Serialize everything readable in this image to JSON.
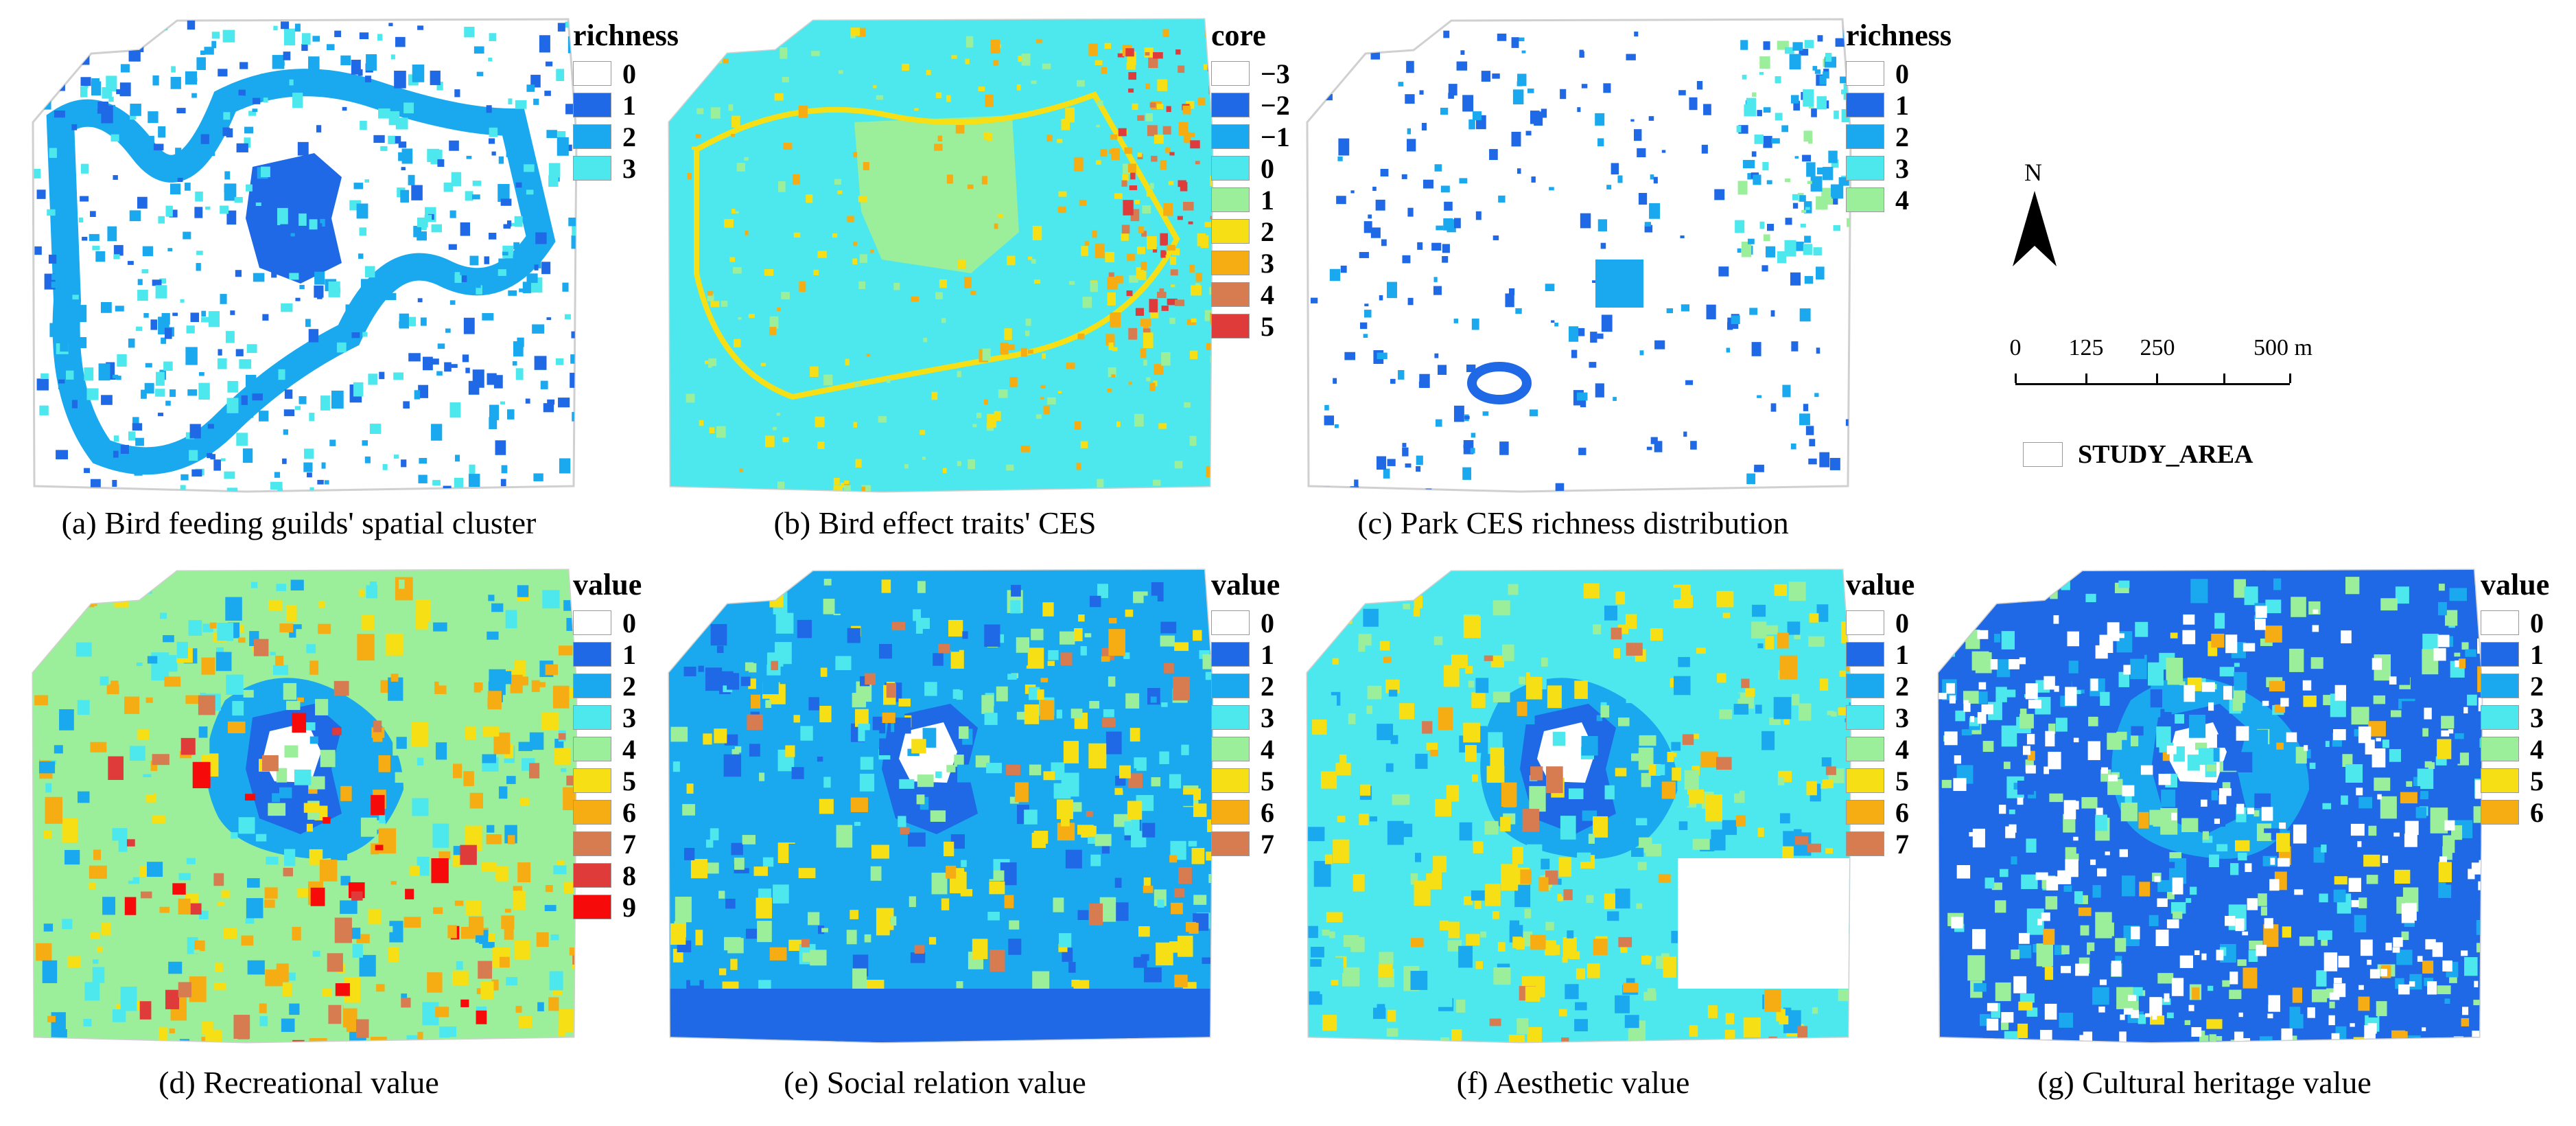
{
  "colors": {
    "boundary": "#d0d0d0",
    "blank": "#ffffff",
    "class1": "#1f68e6",
    "class2": "#1aa9ee",
    "class3": "#4de8ee",
    "class4": "#9bee9a",
    "class5": "#f7df16",
    "class6": "#f5ad13",
    "class7": "#d77b50",
    "class8": "#df3b3b",
    "class9": "#f70a0a"
  },
  "panels": [
    {
      "id": "a",
      "caption": "(a) Bird feeding guilds' spatial cluster",
      "legend": {
        "title": "richness",
        "items": [
          {
            "label": "0",
            "color": "#ffffff"
          },
          {
            "label": "1",
            "color": "#1f68e6"
          },
          {
            "label": "2",
            "color": "#1aa9ee"
          },
          {
            "label": "3",
            "color": "#4de8ee"
          }
        ]
      }
    },
    {
      "id": "b",
      "caption": "(b) Bird effect traits' CES",
      "legend": {
        "title": "core",
        "items": [
          {
            "label": "−3",
            "color": "#ffffff"
          },
          {
            "label": "−2",
            "color": "#1f68e6"
          },
          {
            "label": "−1",
            "color": "#1aa9ee"
          },
          {
            "label": "0",
            "color": "#4de8ee"
          },
          {
            "label": "1",
            "color": "#9bee9a"
          },
          {
            "label": "2",
            "color": "#f7df16"
          },
          {
            "label": "3",
            "color": "#f5ad13"
          },
          {
            "label": "4",
            "color": "#d77b50"
          },
          {
            "label": "5",
            "color": "#df3b3b"
          }
        ]
      }
    },
    {
      "id": "c",
      "caption": "(c) Park CES richness distribution",
      "legend": {
        "title": "richness",
        "items": [
          {
            "label": "0",
            "color": "#ffffff"
          },
          {
            "label": "1",
            "color": "#1f68e6"
          },
          {
            "label": "2",
            "color": "#1aa9ee"
          },
          {
            "label": "3",
            "color": "#4de8ee"
          },
          {
            "label": "4",
            "color": "#9bee9a"
          }
        ]
      }
    },
    {
      "id": "d",
      "caption": "(d) Recreational value",
      "legend": {
        "title": "value",
        "items": [
          {
            "label": "0",
            "color": "#ffffff"
          },
          {
            "label": "1",
            "color": "#1f68e6"
          },
          {
            "label": "2",
            "color": "#1aa9ee"
          },
          {
            "label": "3",
            "color": "#4de8ee"
          },
          {
            "label": "4",
            "color": "#9bee9a"
          },
          {
            "label": "5",
            "color": "#f7df16"
          },
          {
            "label": "6",
            "color": "#f5ad13"
          },
          {
            "label": "7",
            "color": "#d77b50"
          },
          {
            "label": "8",
            "color": "#df3b3b"
          },
          {
            "label": "9",
            "color": "#f70a0a"
          }
        ]
      }
    },
    {
      "id": "e",
      "caption": "(e) Social relation value",
      "legend": {
        "title": "value",
        "items": [
          {
            "label": "0",
            "color": "#ffffff"
          },
          {
            "label": "1",
            "color": "#1f68e6"
          },
          {
            "label": "2",
            "color": "#1aa9ee"
          },
          {
            "label": "3",
            "color": "#4de8ee"
          },
          {
            "label": "4",
            "color": "#9bee9a"
          },
          {
            "label": "5",
            "color": "#f7df16"
          },
          {
            "label": "6",
            "color": "#f5ad13"
          },
          {
            "label": "7",
            "color": "#d77b50"
          }
        ]
      }
    },
    {
      "id": "f",
      "caption": "(f) Aesthetic value",
      "legend": {
        "title": "value",
        "items": [
          {
            "label": "0",
            "color": "#ffffff"
          },
          {
            "label": "1",
            "color": "#1f68e6"
          },
          {
            "label": "2",
            "color": "#1aa9ee"
          },
          {
            "label": "3",
            "color": "#4de8ee"
          },
          {
            "label": "4",
            "color": "#9bee9a"
          },
          {
            "label": "5",
            "color": "#f7df16"
          },
          {
            "label": "6",
            "color": "#f5ad13"
          },
          {
            "label": "7",
            "color": "#d77b50"
          }
        ]
      }
    },
    {
      "id": "g",
      "caption": "(g) Cultural heritage value",
      "legend": {
        "title": "value",
        "items": [
          {
            "label": "0",
            "color": "#ffffff"
          },
          {
            "label": "1",
            "color": "#1f68e6"
          },
          {
            "label": "2",
            "color": "#1aa9ee"
          },
          {
            "label": "3",
            "color": "#4de8ee"
          },
          {
            "label": "4",
            "color": "#9bee9a"
          },
          {
            "label": "5",
            "color": "#f7df16"
          },
          {
            "label": "6",
            "color": "#f5ad13"
          }
        ]
      }
    }
  ],
  "north_arrow": {
    "letter": "N"
  },
  "scale_bar": {
    "labels": [
      "0",
      "125",
      "250",
      "500 m"
    ]
  },
  "study_area": {
    "label": "STUDY_AREA"
  }
}
